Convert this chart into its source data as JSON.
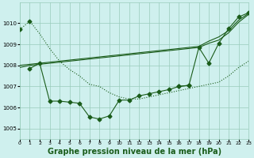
{
  "background_color": "#cff0ee",
  "grid_color": "#99ccbb",
  "line_color": "#1a5c1a",
  "xlabel": "Graphe pression niveau de la mer (hPa)",
  "xlabel_fontsize": 7,
  "xlim": [
    0,
    23
  ],
  "ylim": [
    1004.5,
    1011.0
  ],
  "yticks": [
    1005,
    1006,
    1007,
    1008,
    1009,
    1010
  ],
  "xticks": [
    0,
    1,
    2,
    3,
    4,
    5,
    6,
    7,
    8,
    9,
    10,
    11,
    12,
    13,
    14,
    15,
    16,
    17,
    18,
    19,
    20,
    21,
    22,
    23
  ],
  "dotted_x": [
    0,
    1,
    2,
    3,
    4,
    5,
    6,
    7,
    8,
    9,
    10,
    11,
    12,
    13,
    14,
    15,
    16,
    17,
    18,
    19,
    20,
    21,
    22,
    23
  ],
  "dotted_y": [
    1009.7,
    1010.1,
    1009.5,
    1008.8,
    1008.2,
    1007.8,
    1007.5,
    1007.1,
    1007.0,
    1006.7,
    1006.5,
    1006.4,
    1006.4,
    1006.5,
    1006.6,
    1006.7,
    1006.8,
    1006.9,
    1007.0,
    1007.1,
    1007.2,
    1007.5,
    1007.9,
    1008.2
  ],
  "curve_bottom_x": [
    1,
    2,
    3,
    4,
    5,
    6,
    7,
    8,
    9,
    10,
    11,
    12,
    13,
    14,
    15,
    16,
    17
  ],
  "curve_bottom_y": [
    1007.85,
    1008.1,
    1006.3,
    1006.3,
    1006.25,
    1006.2,
    1005.55,
    1005.45,
    1005.6,
    1006.35,
    1006.35,
    1006.55,
    1006.65,
    1006.75,
    1006.85,
    1007.0,
    1007.05
  ],
  "curve_right_x": [
    16,
    17,
    18,
    19,
    20,
    21,
    22,
    23
  ],
  "curve_right_y": [
    1007.0,
    1007.05,
    1008.85,
    1008.1,
    1009.05,
    1009.75,
    1010.3,
    1010.5
  ],
  "line_flat1_x": [
    0,
    1,
    2,
    3,
    4,
    5,
    6,
    7,
    8,
    9,
    10,
    11,
    12,
    13,
    14,
    15,
    16,
    17,
    18,
    19,
    20,
    21,
    22,
    23
  ],
  "line_flat1_y": [
    1007.9,
    1008.0,
    1008.05,
    1008.1,
    1008.15,
    1008.2,
    1008.25,
    1008.3,
    1008.35,
    1008.4,
    1008.45,
    1008.5,
    1008.55,
    1008.6,
    1008.65,
    1008.7,
    1008.75,
    1008.8,
    1008.85,
    1009.05,
    1009.2,
    1009.55,
    1010.05,
    1010.42
  ],
  "line_flat2_x": [
    0,
    1,
    2,
    3,
    4,
    5,
    6,
    7,
    8,
    9,
    10,
    11,
    12,
    13,
    14,
    15,
    16,
    17,
    18,
    19,
    20,
    21,
    22,
    23
  ],
  "line_flat2_y": [
    1008.0,
    1008.05,
    1008.1,
    1008.15,
    1008.2,
    1008.25,
    1008.3,
    1008.35,
    1008.4,
    1008.45,
    1008.5,
    1008.55,
    1008.6,
    1008.65,
    1008.7,
    1008.75,
    1008.8,
    1008.85,
    1008.9,
    1009.15,
    1009.35,
    1009.65,
    1010.15,
    1010.47
  ]
}
